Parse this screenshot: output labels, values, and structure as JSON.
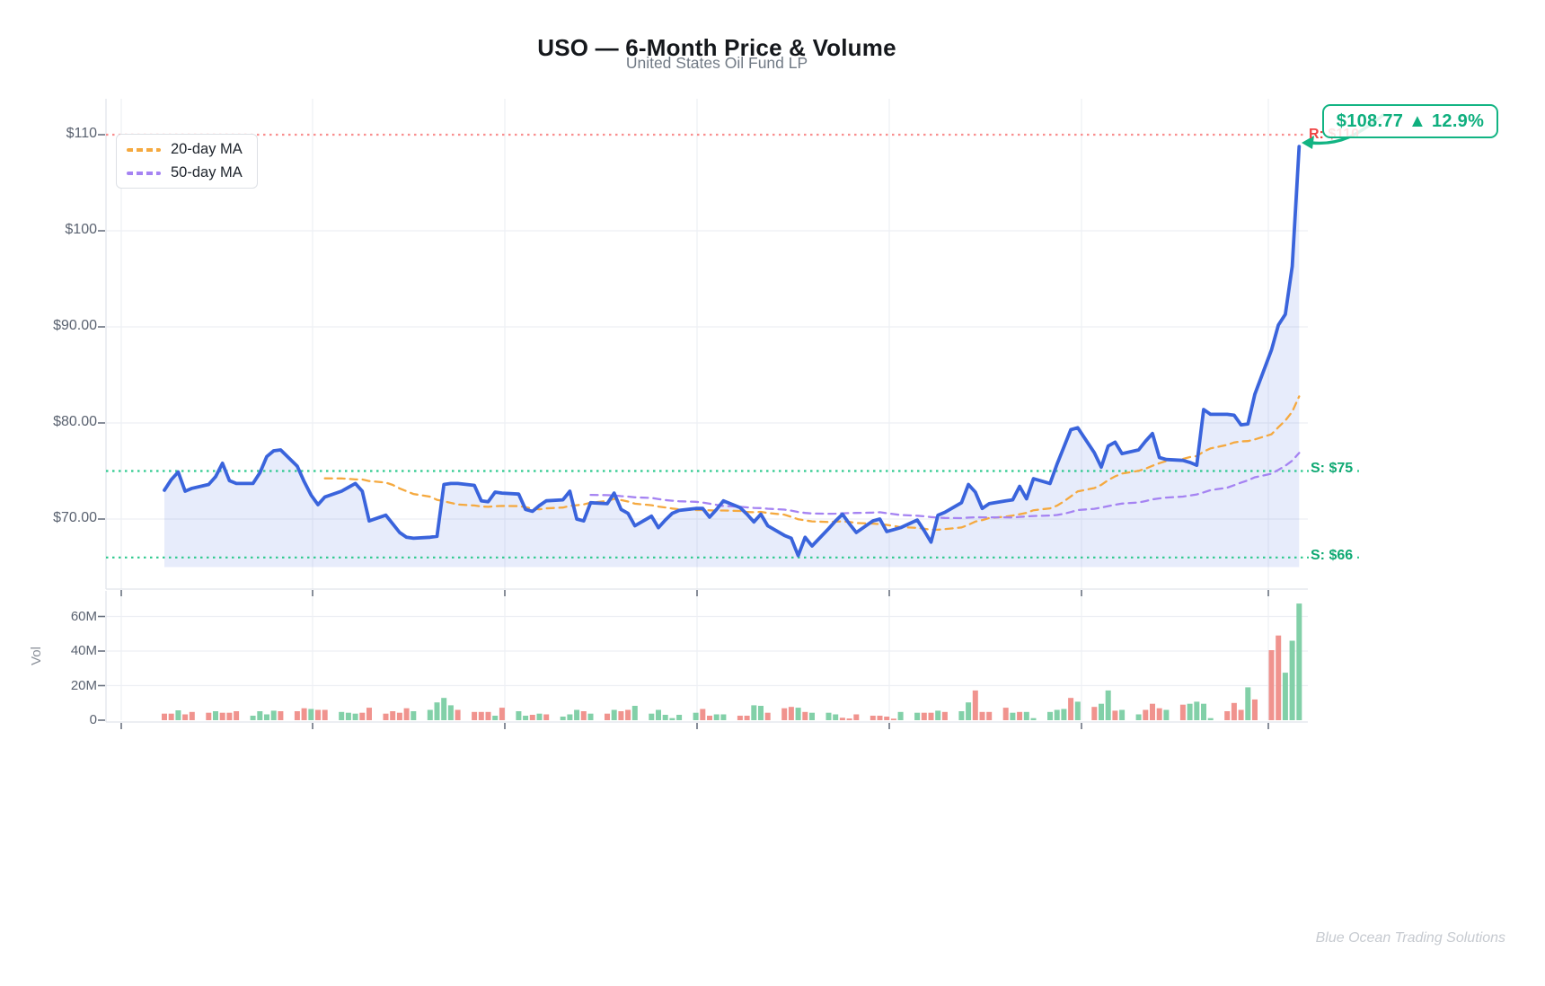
{
  "header": {
    "title": "USO — 6-Month Price & Volume",
    "subtitle": "United States Oil Fund LP"
  },
  "legend": {
    "items": [
      {
        "label": "20-day MA",
        "color": "#F5A93F"
      },
      {
        "label": "50-day MA",
        "color": "#A583F2"
      }
    ]
  },
  "callout": {
    "text": "$108.77 ▲ 12.9%",
    "color": "#0EAF7E",
    "border_color": "#12B483"
  },
  "levels": {
    "resistance": {
      "label": "R: $110",
      "value": 110,
      "text_color": "#EF4444",
      "line_color": "#F98F8F"
    },
    "supports": [
      {
        "label": "S: $75",
        "value": 75
      },
      {
        "label": "S: $66",
        "value": 66
      }
    ],
    "support_text_color": "#0FA973",
    "support_line_color": "#2FC98F"
  },
  "price_axis": {
    "ticks": [
      {
        "label": "$110",
        "value": 110
      },
      {
        "label": "$100",
        "value": 100
      },
      {
        "label": "$90.00",
        "value": 90
      },
      {
        "label": "$80.00",
        "value": 80
      },
      {
        "label": "$70.00",
        "value": 70
      }
    ]
  },
  "volume_axis": {
    "label": "Vol",
    "ticks": [
      {
        "label": "60M",
        "value": 60
      },
      {
        "label": "40M",
        "value": 40
      },
      {
        "label": "20M",
        "value": 20
      },
      {
        "label": "0",
        "value": 0
      }
    ]
  },
  "watermark": "Blue Ocean Trading Solutions",
  "chart_data": {
    "type": "line+bar",
    "title": "USO — 6-Month Price & Volume",
    "subtitle": "United States Oil Fund LP",
    "x_structure": "26 weeks × 5 trading days (weekend gaps on calendar x-axis), no date tick labels",
    "price_ylim": [
      62.7,
      113.7
    ],
    "volume_ylim_m": [
      0,
      75
    ],
    "last_price": 108.77,
    "change_pct": 12.9,
    "ma_windows": [
      20,
      50
    ],
    "support_levels": [
      75,
      66
    ],
    "resistance_level": 110,
    "closes": [
      73.0,
      74.1,
      74.9,
      72.9,
      73.2,
      73.6,
      74.4,
      75.8,
      74.0,
      73.7,
      73.7,
      74.8,
      76.5,
      77.1,
      77.2,
      75.5,
      73.9,
      72.5,
      71.5,
      72.3,
      72.9,
      73.3,
      73.7,
      72.9,
      69.8,
      70.4,
      69.5,
      68.6,
      68.1,
      68.0,
      68.1,
      68.2,
      73.6,
      73.7,
      73.7,
      73.5,
      71.9,
      71.8,
      72.8,
      72.7,
      72.6,
      71.0,
      70.8,
      71.4,
      71.9,
      72.0,
      72.9,
      70.0,
      69.8,
      71.7,
      71.6,
      72.7,
      71.0,
      70.6,
      69.3,
      70.3,
      69.1,
      69.9,
      70.6,
      70.9,
      71.1,
      71.1,
      70.2,
      71.0,
      71.9,
      71.2,
      70.5,
      69.7,
      70.5,
      69.3,
      68.3,
      68.0,
      66.2,
      68.1,
      67.2,
      69.0,
      69.8,
      70.5,
      69.5,
      68.6,
      69.8,
      70.0,
      68.7,
      68.9,
      69.1,
      69.9,
      68.8,
      67.6,
      70.4,
      70.7,
      71.7,
      73.6,
      72.8,
      71.1,
      71.6,
      71.9,
      72.0,
      73.4,
      72.1,
      74.2,
      73.7,
      75.7,
      77.5,
      79.3,
      79.5,
      76.9,
      75.4,
      77.6,
      78.0,
      76.8,
      77.2,
      78.1,
      78.9,
      76.4,
      76.2,
      76.1,
      75.9,
      75.6,
      81.4,
      80.9,
      80.9,
      80.8,
      79.8,
      79.9,
      83.0,
      87.6,
      90.2,
      91.3,
      96.3,
      108.77
    ],
    "volumes_m": [
      3.8,
      3.8,
      5.7,
      3.4,
      4.8,
      4.3,
      5.2,
      4.3,
      4.3,
      5.2,
      2.6,
      5.2,
      3.4,
      5.5,
      5.2,
      5.2,
      6.9,
      6.5,
      6.0,
      6.0,
      4.8,
      4.3,
      3.8,
      4.3,
      7.2,
      3.8,
      5.2,
      4.3,
      6.9,
      5.2,
      6.0,
      10.3,
      12.9,
      8.6,
      6.0,
      4.8,
      4.8,
      4.8,
      2.6,
      7.2,
      5.2,
      2.6,
      3.1,
      3.8,
      3.4,
      2.1,
      3.4,
      6.0,
      5.2,
      3.8,
      3.8,
      6.0,
      5.2,
      6.0,
      8.3,
      3.8,
      6.0,
      3.1,
      1.2,
      3.1,
      4.3,
      6.5,
      2.6,
      3.4,
      3.4,
      2.6,
      2.6,
      8.6,
      8.3,
      4.3,
      6.9,
      7.7,
      7.2,
      4.8,
      4.3,
      4.3,
      3.4,
      1.4,
      1.0,
      3.4,
      2.6,
      2.6,
      2.1,
      0.9,
      4.8,
      4.3,
      4.3,
      4.3,
      5.5,
      4.8,
      5.2,
      10.3,
      17.2,
      4.8,
      4.8,
      7.2,
      4.3,
      4.8,
      4.8,
      1.2,
      4.8,
      6.0,
      6.5,
      12.9,
      10.7,
      7.7,
      9.5,
      17.2,
      5.5,
      6.0,
      3.4,
      6.0,
      9.5,
      6.9,
      6.0,
      9.0,
      9.5,
      10.7,
      9.5,
      1.2,
      5.2,
      10.0,
      6.0,
      19.0,
      12.0,
      40.5,
      49.0,
      27.5,
      46.0,
      67.5
    ],
    "bar_directions_by_week": [
      "ddudd",
      "duddd",
      "uuuud",
      "ddudd",
      "uuudd",
      "ddddu",
      "uuuud",
      "dddud",
      "uudud",
      "uuudu",
      "duddu",
      "uuuuu",
      "udduu",
      "dduud",
      "ddudu",
      "uuddd",
      "ddddu",
      "uddud",
      "uuddd",
      "duduu",
      "uuudu",
      "duudu",
      "udddu",
      "duuuu",
      "dddud",
      "dduuu"
    ],
    "colors": {
      "price_line": "#3A64DC",
      "price_fill": "rgba(58,100,220,0.12)",
      "ma20": "#F5A93F",
      "ma50": "#A583F2",
      "volume_up": "#82D0A8",
      "volume_down": "#F0938E",
      "support_line": "#2FC98F",
      "resistance_line": "#F98F8F",
      "grid": "#EDEFF4"
    }
  }
}
